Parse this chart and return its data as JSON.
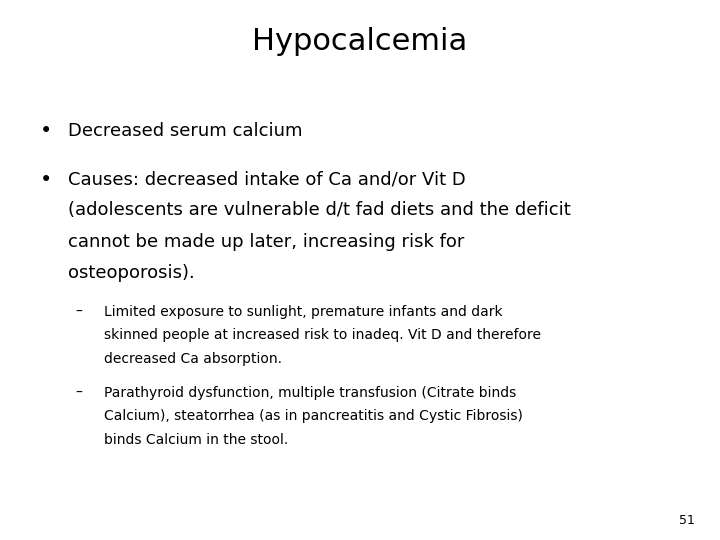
{
  "title": "Hypocalcemia",
  "title_fontsize": 22,
  "background_color": "#ffffff",
  "text_color": "#000000",
  "bullet1": "Decreased serum calcium",
  "bullet2_line1": "Causes: decreased intake of Ca and/or Vit D",
  "bullet2_line2": "(adolescents are vulnerable d/t fad diets and the deficit",
  "bullet2_line3": "cannot be made up later, increasing risk for",
  "bullet2_line4": "osteoporosis).",
  "sub1_line1": "Limited exposure to sunlight, premature infants and dark",
  "sub1_line2": "skinned people at increased risk to inadeq. Vit D and therefore",
  "sub1_line3": "decreased Ca absorption.",
  "sub2_line1": "Parathyroid dysfunction, multiple transfusion (Citrate binds",
  "sub2_line2": "Calcium), steatorrhea (as in pancreatitis and Cystic Fibrosis)",
  "sub2_line3": "binds Calcium in the stool.",
  "page_number": "51",
  "bullet_fontsize": 13,
  "sub_fontsize": 10
}
